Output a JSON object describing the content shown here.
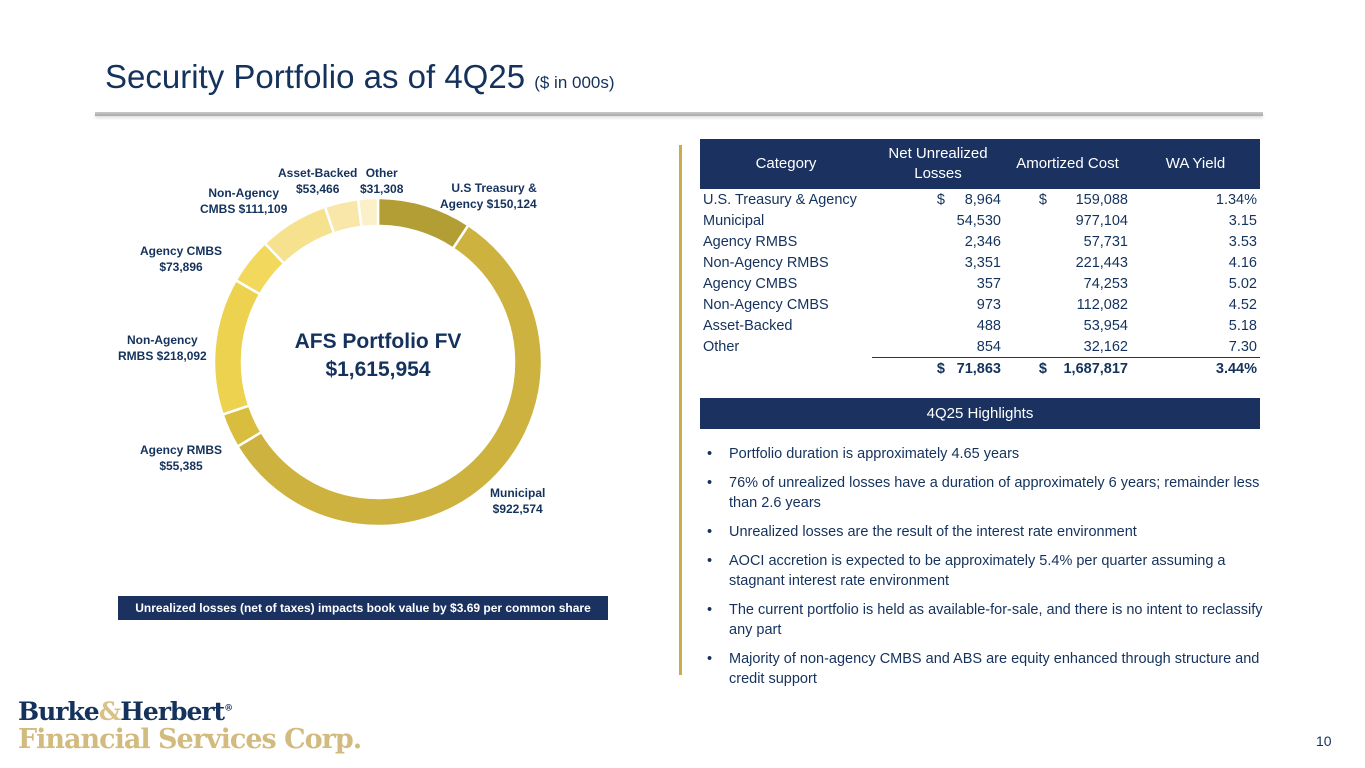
{
  "title": {
    "main": "Security Portfolio as of 4Q25",
    "sub": "($ in 000s)"
  },
  "chart_data": {
    "type": "pie",
    "donut": true,
    "center_title": "AFS Portfolio FV",
    "center_value": "$1,615,954",
    "slices": [
      {
        "name": "U.S Treasury & Agency",
        "label1": "U.S Treasury &",
        "label2": "Agency  $150,124",
        "value": 150124,
        "color": "#b29e35"
      },
      {
        "name": "Municipal",
        "label1": "Municipal",
        "label2": "$922,574",
        "value": 922574,
        "color": "#cdb23f"
      },
      {
        "name": "Agency RMBS",
        "label1": "Agency RMBS",
        "label2": "$55,385",
        "value": 55385,
        "color": "#d8bd3f"
      },
      {
        "name": "Non-Agency RMBS",
        "label1": "Non-Agency",
        "label2": "RMBS  $218,092",
        "value": 218092,
        "color": "#ecd24e"
      },
      {
        "name": "Agency CMBS",
        "label1": "Agency CMBS",
        "label2": "$73,896",
        "value": 73896,
        "color": "#f2d85c"
      },
      {
        "name": "Non-Agency CMBS",
        "label1": "Non-Agency",
        "label2": "CMBS  $111,109",
        "value": 111109,
        "color": "#f6e18f"
      },
      {
        "name": "Asset-Backed",
        "label1": "Asset-Backed",
        "label2": "$53,466",
        "value": 53466,
        "color": "#f8e7a8"
      },
      {
        "name": "Other",
        "label1": "Other",
        "label2": "$31,308",
        "value": 31308,
        "color": "#fbf0c8"
      }
    ]
  },
  "note": "Unrealized losses (net of taxes) impacts book value by $3.69 per common share",
  "table": {
    "headers": [
      "Category",
      "Net Unrealized Losses",
      "Amortized Cost",
      "WA Yield"
    ],
    "rows": [
      [
        "U.S. Treasury & Agency",
        "$",
        "8,964",
        "$",
        "159,088",
        "1.34%"
      ],
      [
        "Municipal",
        "",
        "54,530",
        "",
        "977,104",
        "3.15"
      ],
      [
        "Agency RMBS",
        "",
        "2,346",
        "",
        "57,731",
        "3.53"
      ],
      [
        "Non-Agency RMBS",
        "",
        "3,351",
        "",
        "221,443",
        "4.16"
      ],
      [
        "Agency CMBS",
        "",
        "357",
        "",
        "74,253",
        "5.02"
      ],
      [
        "Non-Agency CMBS",
        "",
        "973",
        "",
        "112,082",
        "4.52"
      ],
      [
        "Asset-Backed",
        "",
        "488",
        "",
        "53,954",
        "5.18"
      ],
      [
        "Other",
        "",
        "854",
        "",
        "32,162",
        "7.30"
      ]
    ],
    "total": [
      "",
      "$",
      "71,863",
      "$",
      "1,687,817",
      "3.44%"
    ]
  },
  "highlights": {
    "title": "4Q25 Highlights",
    "items": [
      "Portfolio duration is approximately 4.65 years",
      "76% of unrealized losses have a duration of approximately 6 years; remainder less than 2.6 years",
      "Unrealized losses are the result of the interest rate environment",
      "AOCI accretion is expected to be approximately 5.4% per quarter assuming a stagnant interest rate environment",
      "The current portfolio is held as available-for-sale, and there is no intent to reclassify any part",
      "Majority of non-agency CMBS and ABS are equity enhanced through structure and credit support"
    ]
  },
  "logo": {
    "line1a": "Burke",
    "amp": "&",
    "line1b": "Herbert",
    "reg": "®",
    "line2": "Financial Services Corp."
  },
  "page_number": "10"
}
